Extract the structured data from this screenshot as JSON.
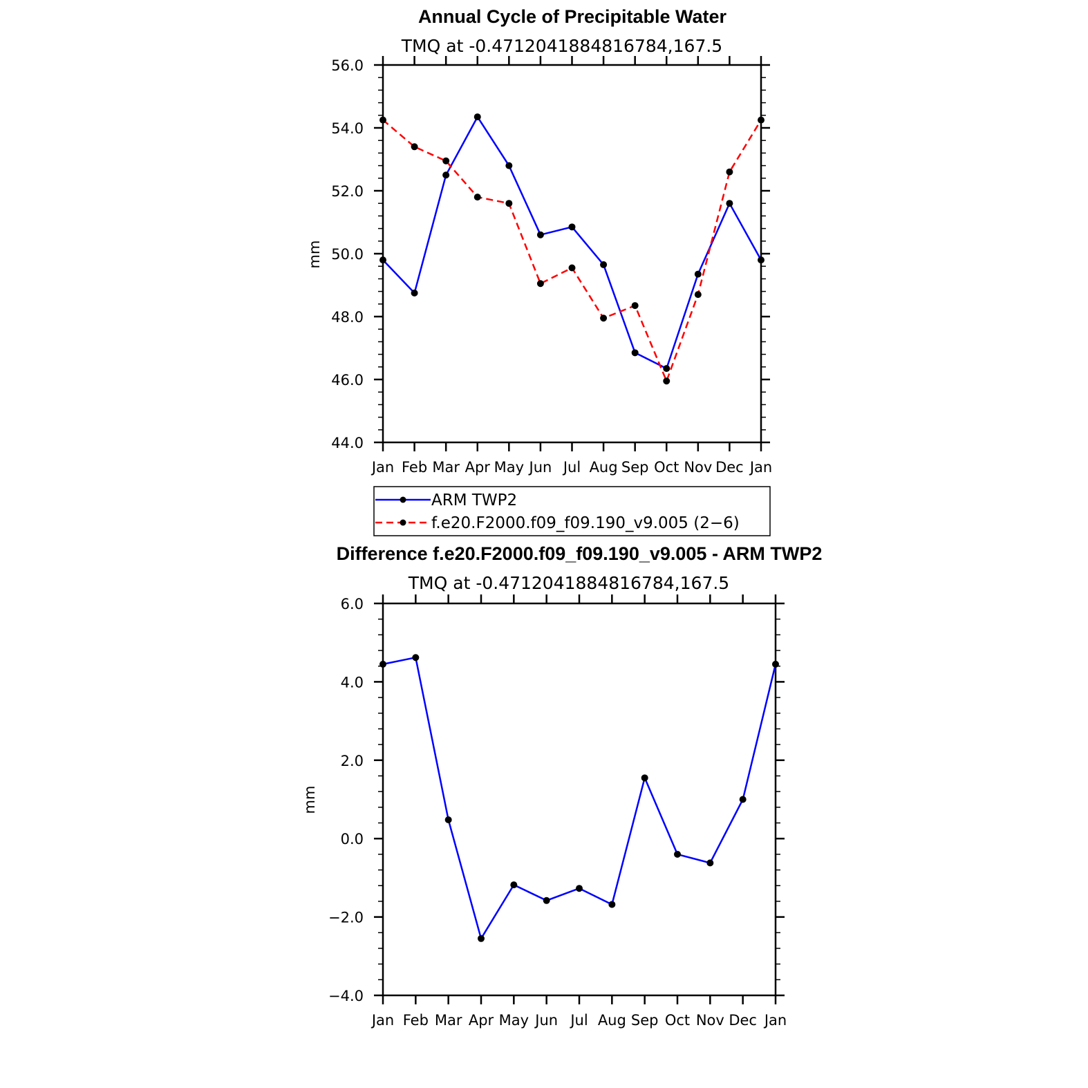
{
  "chart_data": [
    {
      "type": "line",
      "title": "Annual Cycle of Precipitable Water",
      "subtitle": "TMQ at -0.4712041884816784,167.5",
      "xlabel": "",
      "ylabel": "mm",
      "categories": [
        "Jan",
        "Feb",
        "Mar",
        "Apr",
        "May",
        "Jun",
        "Jul",
        "Aug",
        "Sep",
        "Oct",
        "Nov",
        "Dec",
        "Jan"
      ],
      "ylim": [
        44.0,
        56.0
      ],
      "yticks": [
        "44.0",
        "46.0",
        "48.0",
        "50.0",
        "52.0",
        "54.0",
        "56.0"
      ],
      "grid": false,
      "legend_position": "below",
      "series": [
        {
          "name": "ARM TWP2",
          "color": "#0000ff",
          "dash": "solid",
          "values": [
            49.8,
            48.75,
            52.5,
            54.35,
            52.8,
            50.6,
            50.85,
            49.65,
            46.85,
            46.35,
            49.35,
            51.6,
            49.8
          ]
        },
        {
          "name": "f.e20.F2000.f09_f09.190_v9.005 (2−6)",
          "color": "#ff0000",
          "dash": "dashed",
          "values": [
            54.25,
            53.4,
            52.95,
            51.8,
            51.6,
            49.05,
            49.55,
            47.95,
            48.35,
            45.95,
            48.7,
            52.6,
            54.25
          ]
        }
      ]
    },
    {
      "type": "line",
      "title": "Difference f.e20.F2000.f09_f09.190_v9.005 - ARM TWP2",
      "subtitle": "TMQ at -0.4712041884816784,167.5",
      "xlabel": "",
      "ylabel": "mm",
      "categories": [
        "Jan",
        "Feb",
        "Mar",
        "Apr",
        "May",
        "Jun",
        "Jul",
        "Aug",
        "Sep",
        "Oct",
        "Nov",
        "Dec",
        "Jan"
      ],
      "ylim": [
        -4.0,
        6.0
      ],
      "yticks": [
        "−4.0",
        "−2.0",
        "0.0",
        "2.0",
        "4.0",
        "6.0"
      ],
      "grid": false,
      "series": [
        {
          "name": "",
          "color": "#0000ff",
          "dash": "solid",
          "values": [
            4.45,
            4.62,
            0.48,
            -2.55,
            -1.18,
            -1.58,
            -1.27,
            -1.68,
            1.55,
            -0.4,
            -0.62,
            1.0,
            4.45
          ]
        }
      ]
    }
  ]
}
